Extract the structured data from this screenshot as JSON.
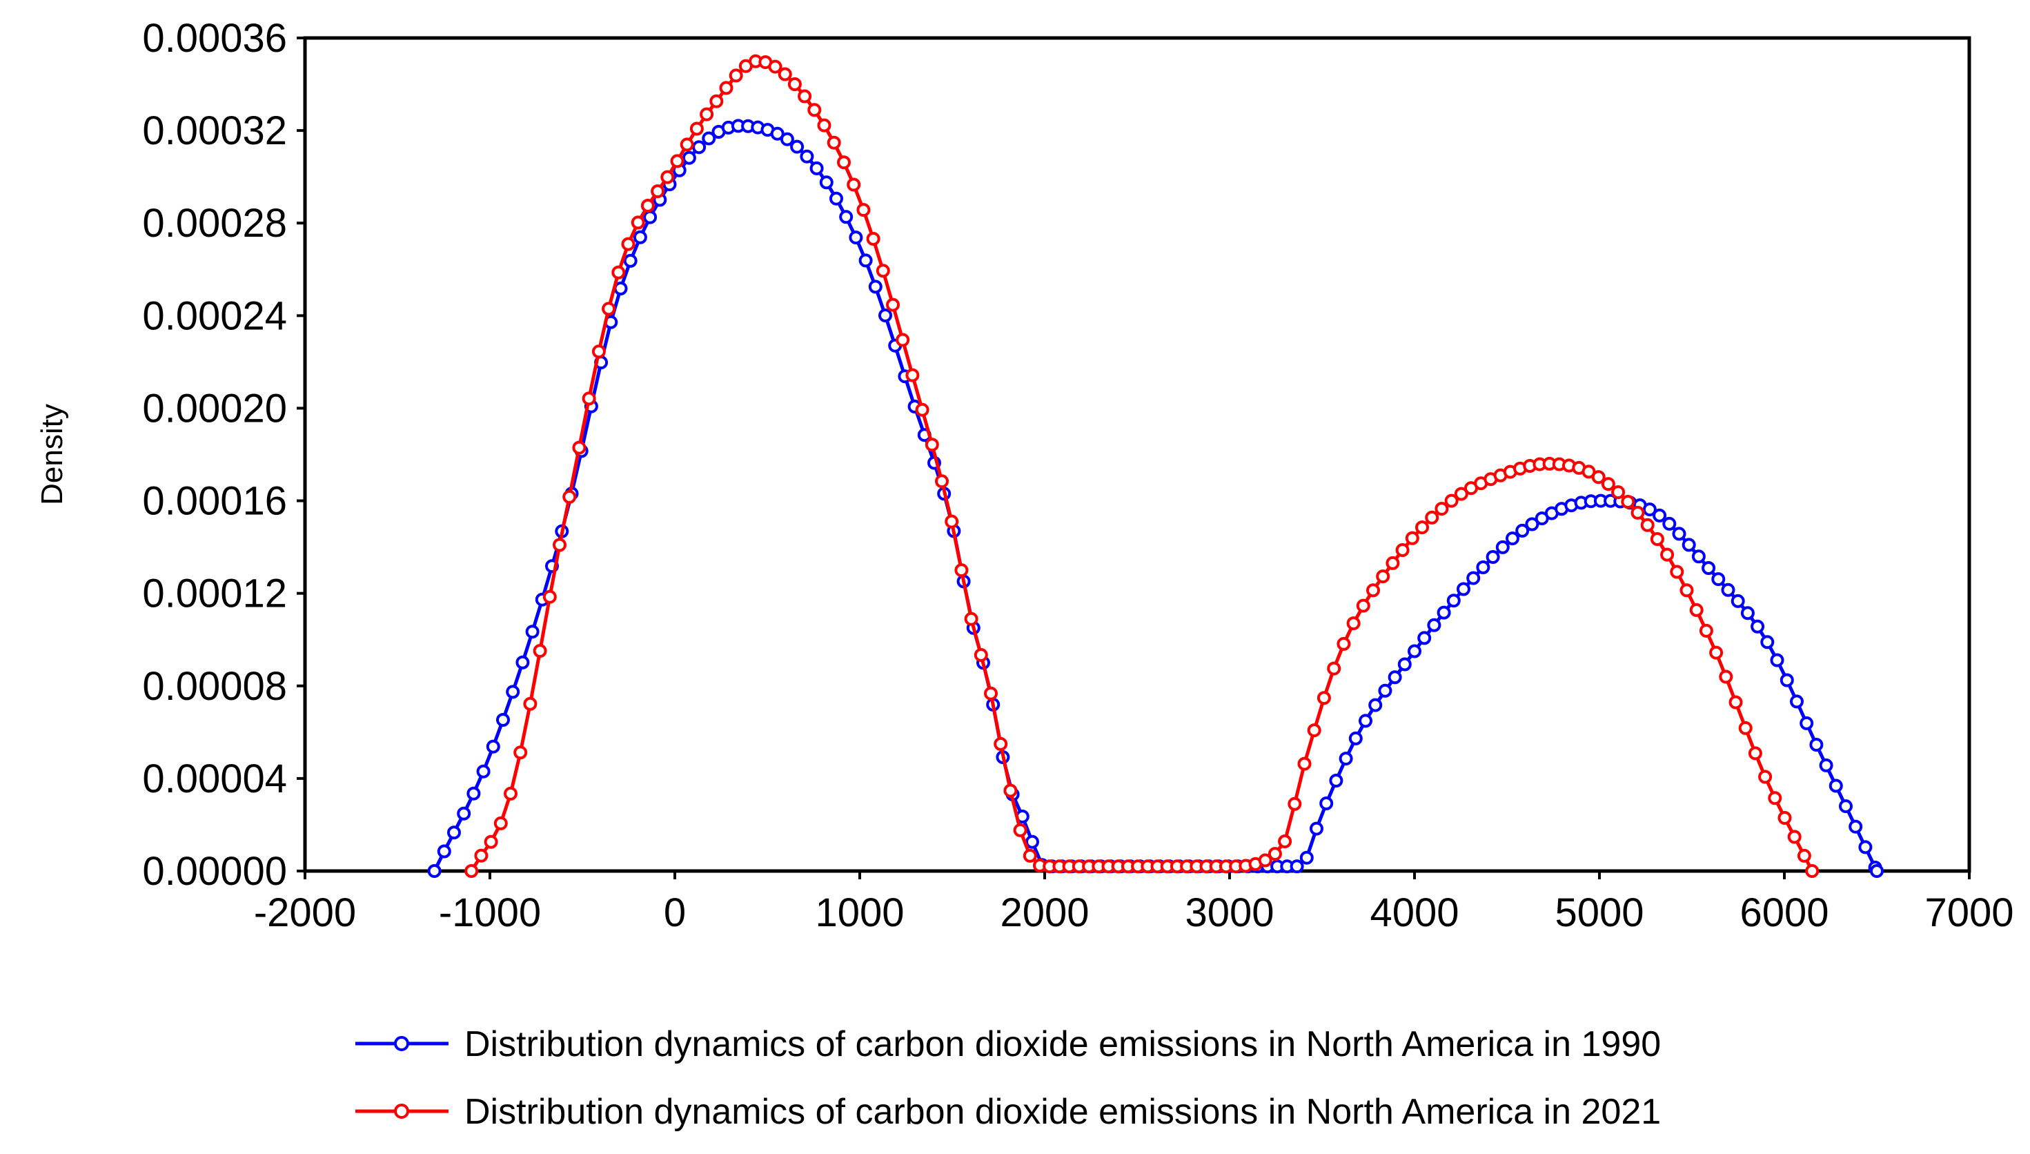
{
  "chart_data": {
    "type": "line",
    "title": "",
    "xlabel": "",
    "ylabel": "Density",
    "xlim": [
      -2000,
      7000
    ],
    "ylim": [
      0,
      0.00036
    ],
    "x_ticks": [
      -2000,
      -1000,
      0,
      1000,
      2000,
      3000,
      4000,
      5000,
      6000,
      7000
    ],
    "x_tick_labels": [
      "-2000",
      "-1000",
      "0",
      "1000",
      "2000",
      "3000",
      "4000",
      "5000",
      "6000",
      "7000"
    ],
    "y_ticks": [
      0,
      4e-05,
      8e-05,
      0.00012,
      0.00016,
      0.0002,
      0.00024,
      0.00028,
      0.00032,
      0.00036
    ],
    "y_tick_labels": [
      "0.00000",
      "0.00004",
      "0.00008",
      "0.00012",
      "0.00016",
      "0.00020",
      "0.00024",
      "0.00028",
      "0.00032",
      "0.00036"
    ],
    "grid": false,
    "legend_position": "bottom",
    "series": [
      {
        "name": "Distribution dynamics of carbon dioxide emissions in North America in 1990",
        "color": "#0000FF",
        "marker": "circle-open",
        "x": [
          -1300,
          -1000,
          -600,
          -300,
          0,
          350,
          700,
          1000,
          1300,
          1500,
          1600,
          1700,
          1800,
          1900,
          2000,
          2500,
          3000,
          3380,
          3500,
          3700,
          4000,
          4300,
          4600,
          5000,
          5300,
          5600,
          5900,
          6200,
          6500
        ],
        "y": [
          0,
          5e-05,
          0.00015,
          0.00025,
          0.0003,
          0.000322,
          0.00031,
          0.00027,
          0.0002,
          0.00015,
          0.00011,
          8e-05,
          4e-05,
          2e-05,
          2e-06,
          2e-06,
          2e-06,
          2e-06,
          2.5e-05,
          6e-05,
          9.5e-05,
          0.000125,
          0.000148,
          0.00016,
          0.000155,
          0.00013,
          0.0001,
          5e-05,
          0
        ]
      },
      {
        "name": "Distribution dynamics of carbon dioxide emissions in North America in 2021",
        "color": "#FF0000",
        "marker": "circle-open",
        "x": [
          -1100,
          -900,
          -600,
          -300,
          0,
          200,
          450,
          700,
          1000,
          1300,
          1500,
          1600,
          1700,
          1800,
          1900,
          2000,
          2500,
          3000,
          3280,
          3400,
          3600,
          3900,
          4200,
          4500,
          4720,
          5000,
          5300,
          5600,
          5900,
          6150
        ],
        "y": [
          0,
          3e-05,
          0.00015,
          0.00026,
          0.000305,
          0.00033,
          0.00035,
          0.000335,
          0.00029,
          0.00021,
          0.00015,
          0.00011,
          8e-05,
          4e-05,
          1e-05,
          2e-06,
          2e-06,
          2e-06,
          1e-05,
          4.5e-05,
          9.5e-05,
          0.000135,
          0.00016,
          0.000172,
          0.000176,
          0.00017,
          0.000145,
          0.0001,
          4e-05,
          0
        ]
      }
    ]
  }
}
